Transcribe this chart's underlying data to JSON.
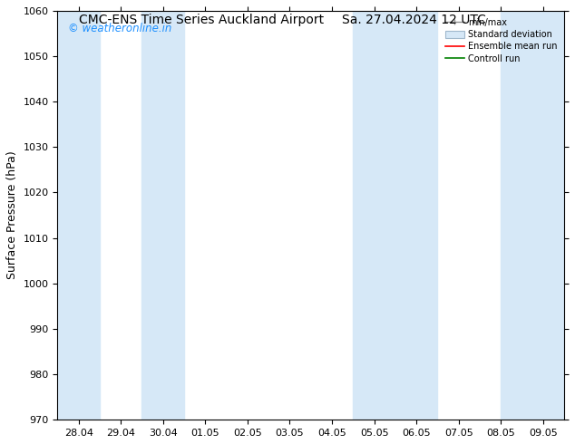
{
  "title_left": "CMC-ENS Time Series Auckland Airport",
  "title_right": "Sa. 27.04.2024 12 UTC",
  "ylabel": "Surface Pressure (hPa)",
  "ylim": [
    970,
    1060
  ],
  "yticks": [
    970,
    980,
    990,
    1000,
    1010,
    1020,
    1030,
    1040,
    1050,
    1060
  ],
  "xtick_labels": [
    "28.04",
    "29.04",
    "30.04",
    "01.05",
    "02.05",
    "03.05",
    "04.05",
    "05.05",
    "06.05",
    "07.05",
    "08.05",
    "09.05"
  ],
  "xtick_positions": [
    0,
    1,
    2,
    3,
    4,
    5,
    6,
    7,
    8,
    9,
    10,
    11
  ],
  "xlim": [
    -0.5,
    11.5
  ],
  "shaded_bands": [
    {
      "start": -0.5,
      "end": 0.5
    },
    {
      "start": 1.5,
      "end": 2.5
    },
    {
      "start": 6.5,
      "end": 8.5
    },
    {
      "start": 10.0,
      "end": 11.5
    }
  ],
  "shaded_color": "#d6e8f7",
  "watermark_text": "© weatheronline.in",
  "watermark_color": "#1e90ff",
  "legend_entries": [
    {
      "label": "min/max",
      "color": "#a0a0a0",
      "type": "errorbar"
    },
    {
      "label": "Standard deviation",
      "color": "#c8dff0",
      "type": "rect"
    },
    {
      "label": "Ensemble mean run",
      "color": "red",
      "type": "line"
    },
    {
      "label": "Controll run",
      "color": "green",
      "type": "line"
    }
  ],
  "background_color": "#ffffff",
  "spine_color": "#000000",
  "title_fontsize": 10,
  "tick_fontsize": 8,
  "ylabel_fontsize": 9
}
